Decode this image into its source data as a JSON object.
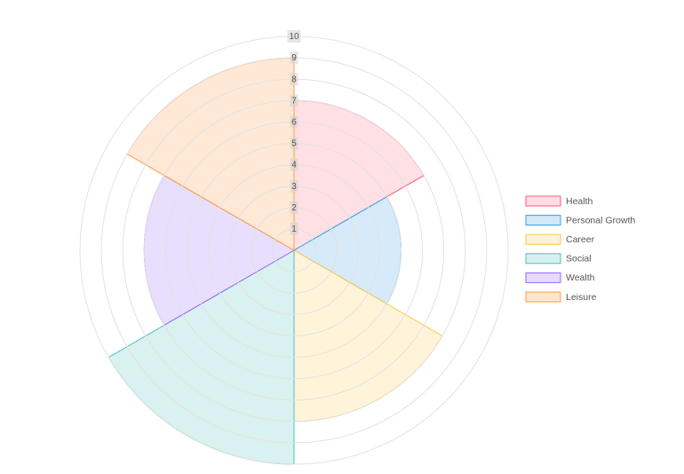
{
  "chart_data": {
    "type": "polarArea",
    "categories": [
      "Health",
      "Personal Growth",
      "Career",
      "Social",
      "Wealth",
      "Leisure"
    ],
    "values": [
      7,
      5,
      8,
      10,
      7,
      9
    ],
    "rlim": [
      0,
      10
    ],
    "ticks": [
      "1",
      "2",
      "3",
      "4",
      "5",
      "6",
      "7",
      "8",
      "9",
      "10"
    ],
    "grid": true,
    "legend": "right",
    "colors": [
      {
        "fill": "#ffdde2",
        "stroke": "#ff5a78"
      },
      {
        "fill": "#d3e8f8",
        "stroke": "#36a2eb"
      },
      {
        "fill": "#fff3d6",
        "stroke": "#ffc64d"
      },
      {
        "fill": "#d6f0f0",
        "stroke": "#4bc0c0"
      },
      {
        "fill": "#e4dbfd",
        "stroke": "#9966ff"
      },
      {
        "fill": "#ffe5d0",
        "stroke": "#ff9f40"
      }
    ]
  }
}
